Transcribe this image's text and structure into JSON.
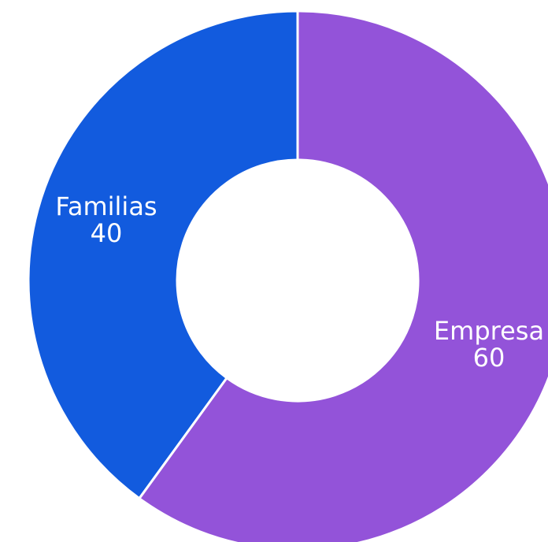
{
  "chart_data": {
    "type": "pie",
    "variant": "donut",
    "slices": [
      {
        "label": "Familias",
        "value": 40,
        "color": "#125BDE"
      },
      {
        "label": "Empresa",
        "value": 60,
        "color": "#9353D9"
      }
    ],
    "start": "top",
    "direction": "counterclockwise",
    "legend": "none",
    "data_labels": "inside-slice"
  }
}
